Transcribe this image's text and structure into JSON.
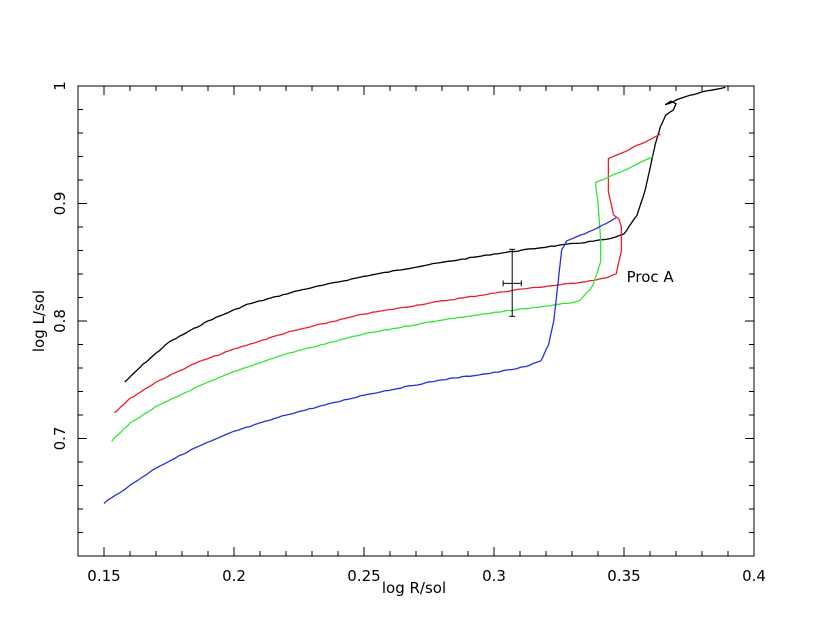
{
  "chart_data": {
    "type": "line",
    "title": "",
    "xlabel": "log R/sol",
    "ylabel": "log L/sol",
    "xlim": [
      0.14,
      0.4
    ],
    "ylim": [
      0.6,
      1.0
    ],
    "x_ticks": [
      0.15,
      0.2,
      0.25,
      0.3,
      0.35,
      0.4
    ],
    "x_tick_labels": [
      "0.15",
      "0.2",
      "0.25",
      "0.3",
      "0.35",
      "0.4"
    ],
    "y_ticks": [
      0.7,
      0.8,
      0.9,
      1.0
    ],
    "y_tick_labels": [
      "0.7",
      "0.8",
      "0.9",
      "1"
    ],
    "grid": false,
    "legend": "none",
    "annotation": {
      "text": "Proc A",
      "x": 0.351,
      "y": 0.833
    },
    "error_bar": {
      "x": 0.307,
      "y": 0.832,
      "x_err": 0.0035,
      "y_low": 0.804,
      "y_high": 0.861,
      "color": "#000000"
    },
    "series": [
      {
        "color": "#000000",
        "x": [
          0.158,
          0.165,
          0.175,
          0.19,
          0.205,
          0.225,
          0.25,
          0.275,
          0.3,
          0.32,
          0.335,
          0.345,
          0.35,
          0.355,
          0.358,
          0.36,
          0.362,
          0.364,
          0.366,
          0.369,
          0.37,
          0.368,
          0.366,
          0.372,
          0.38,
          0.389
        ],
        "y": [
          0.748,
          0.763,
          0.782,
          0.8,
          0.814,
          0.826,
          0.838,
          0.848,
          0.857,
          0.863,
          0.867,
          0.87,
          0.874,
          0.89,
          0.91,
          0.93,
          0.95,
          0.965,
          0.975,
          0.98,
          0.985,
          0.987,
          0.984,
          0.99,
          0.995,
          0.999
        ]
      },
      {
        "color": "#e8202a",
        "x": [
          0.154,
          0.16,
          0.17,
          0.185,
          0.2,
          0.22,
          0.25,
          0.28,
          0.31,
          0.33,
          0.342,
          0.347,
          0.349,
          0.349,
          0.348,
          0.346,
          0.344,
          0.344,
          0.352,
          0.364
        ],
        "y": [
          0.722,
          0.734,
          0.748,
          0.764,
          0.776,
          0.79,
          0.806,
          0.817,
          0.827,
          0.832,
          0.836,
          0.84,
          0.86,
          0.88,
          0.887,
          0.89,
          0.91,
          0.938,
          0.946,
          0.959
        ]
      },
      {
        "color": "#33e633",
        "x": [
          0.153,
          0.16,
          0.17,
          0.185,
          0.2,
          0.22,
          0.25,
          0.28,
          0.31,
          0.325,
          0.333,
          0.338,
          0.341,
          0.341,
          0.34,
          0.339,
          0.35,
          0.361
        ],
        "y": [
          0.698,
          0.713,
          0.727,
          0.743,
          0.757,
          0.772,
          0.789,
          0.801,
          0.81,
          0.814,
          0.817,
          0.83,
          0.85,
          0.87,
          0.9,
          0.918,
          0.928,
          0.94
        ]
      },
      {
        "color": "#2233dd",
        "x": [
          0.15,
          0.16,
          0.17,
          0.185,
          0.2,
          0.22,
          0.25,
          0.28,
          0.3,
          0.312,
          0.318,
          0.321,
          0.323,
          0.324,
          0.325,
          0.326,
          0.328,
          0.332,
          0.338,
          0.343,
          0.347
        ],
        "y": [
          0.645,
          0.66,
          0.675,
          0.692,
          0.706,
          0.72,
          0.737,
          0.75,
          0.756,
          0.761,
          0.766,
          0.78,
          0.8,
          0.82,
          0.84,
          0.86,
          0.868,
          0.872,
          0.877,
          0.883,
          0.888
        ]
      }
    ]
  }
}
